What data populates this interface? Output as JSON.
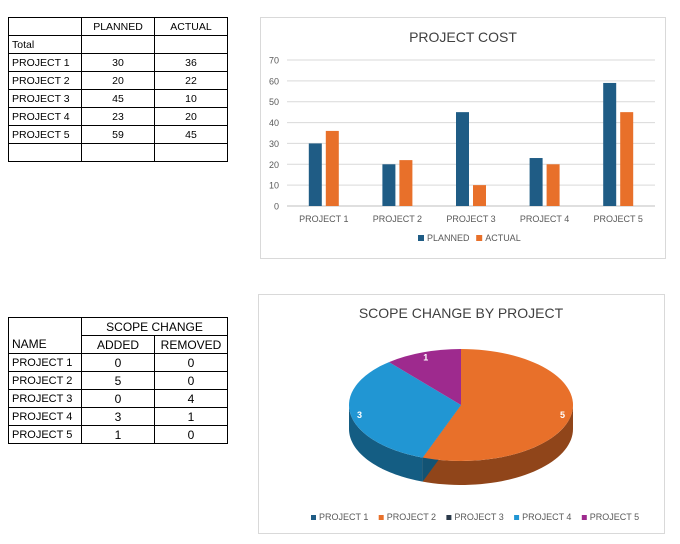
{
  "table1": {
    "headers": [
      "",
      "PLANNED",
      "ACTUAL"
    ],
    "rows": [
      [
        "Total",
        "",
        ""
      ],
      [
        "PROJECT 1",
        "30",
        "36"
      ],
      [
        "PROJECT 2",
        "20",
        "22"
      ],
      [
        "PROJECT 3",
        "45",
        "10"
      ],
      [
        "PROJECT 4",
        "23",
        "20"
      ],
      [
        "PROJECT 5",
        "59",
        "45"
      ],
      [
        "",
        "",
        ""
      ]
    ]
  },
  "table2": {
    "group_header": "SCOPE CHANGE",
    "headers": [
      "NAME",
      "ADDED",
      "REMOVED"
    ],
    "rows": [
      [
        "PROJECT 1",
        "0",
        "0"
      ],
      [
        "PROJECT 2",
        "5",
        "0"
      ],
      [
        "PROJECT 3",
        "0",
        "4"
      ],
      [
        "PROJECT 4",
        "3",
        "1"
      ],
      [
        "PROJECT 5",
        "1",
        "0"
      ]
    ]
  },
  "chart_data": [
    {
      "type": "bar",
      "title": "PROJECT COST",
      "categories": [
        "PROJECT 1",
        "PROJECT 2",
        "PROJECT 3",
        "PROJECT 4",
        "PROJECT 5"
      ],
      "series": [
        {
          "name": "PLANNED",
          "values": [
            30,
            20,
            45,
            23,
            59
          ],
          "color": "#1f5c85"
        },
        {
          "name": "ACTUAL",
          "values": [
            36,
            22,
            10,
            20,
            45
          ],
          "color": "#e8702a"
        }
      ],
      "ylim": [
        0,
        70
      ],
      "yticks": [
        0,
        10,
        20,
        30,
        40,
        50,
        60,
        70
      ],
      "grid": true,
      "legend": "bottom"
    },
    {
      "type": "pie",
      "title": "SCOPE CHANGE BY PROJECT",
      "labels": [
        "PROJECT 1",
        "PROJECT 2",
        "PROJECT 3",
        "PROJECT 4",
        "PROJECT 5"
      ],
      "values": [
        0,
        5,
        0,
        3,
        1
      ],
      "colors": [
        "#1f5c85",
        "#e8702a",
        "#2b3a4a",
        "#2196d3",
        "#9e2a8e"
      ],
      "legend": "bottom"
    }
  ]
}
